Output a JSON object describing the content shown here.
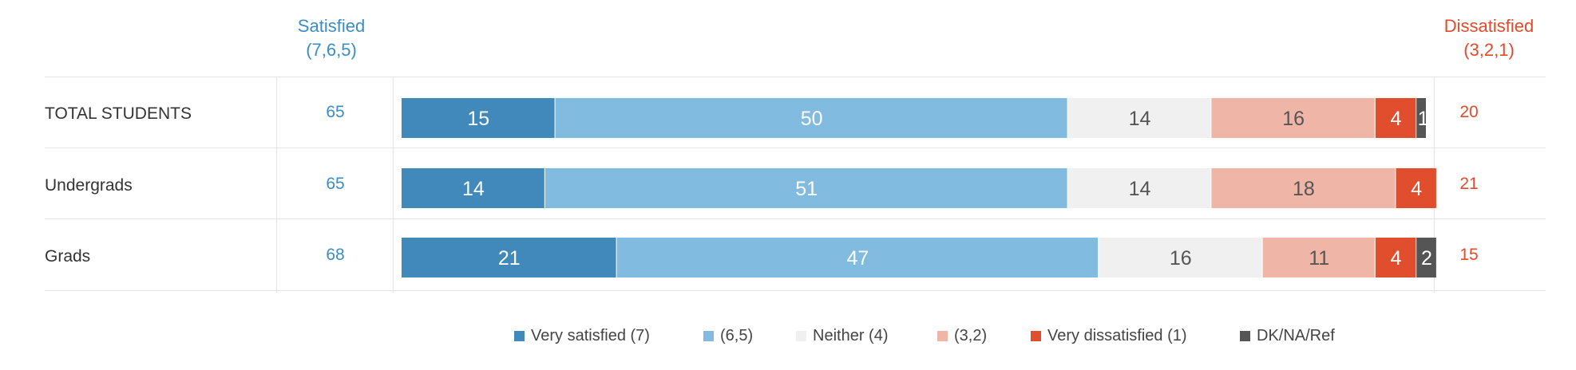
{
  "header": {
    "satisfied": "Satisfied",
    "satisfied_codes": "(7,6,5)",
    "dissatisfied": "Dissatisfied",
    "dissatisfied_codes": "(3,2,1)"
  },
  "colors": {
    "satisfied_text": "#3B8DC5",
    "dissatisfied_text": "#E24A2B",
    "very_satisfied": "#4189BA",
    "six_five": "#82BBE0",
    "neither": "#F0F0F0",
    "three_two": "#EFB5A6",
    "very_dissatisfied": "#E04E2E",
    "dk": "#555555"
  },
  "rows": [
    {
      "label": "TOTAL STUDENTS",
      "satisfied": "65",
      "dissatisfied": "20"
    },
    {
      "label": "Undergrads",
      "satisfied": "65",
      "dissatisfied": "21"
    },
    {
      "label": "Grads",
      "satisfied": "68",
      "dissatisfied": "15"
    }
  ],
  "legend": [
    {
      "label": "Very satisfied (7)",
      "color": "#4189BA"
    },
    {
      "label": "(6,5)",
      "color": "#82BBE0"
    },
    {
      "label": "Neither (4)",
      "color": "#F0F0F0"
    },
    {
      "label": "(3,2)",
      "color": "#EFB5A6"
    },
    {
      "label": "Very dissatisfied (1)",
      "color": "#E04E2E"
    },
    {
      "label": "DK/NA/Ref",
      "color": "#555555"
    }
  ],
  "chart_data": {
    "type": "bar",
    "orientation": "horizontal",
    "stacked": true,
    "categories": [
      "TOTAL STUDENTS",
      "Undergrads",
      "Grads"
    ],
    "series": [
      {
        "name": "Very satisfied (7)",
        "color": "#4189BA",
        "label_color": "#ffffff",
        "values": [
          15,
          14,
          21
        ]
      },
      {
        "name": "(6,5)",
        "color": "#82BBE0",
        "label_color": "#ffffff",
        "values": [
          50,
          51,
          47
        ]
      },
      {
        "name": "Neither (4)",
        "color": "#F0F0F0",
        "label_color": "#555555",
        "values": [
          14,
          14,
          16
        ]
      },
      {
        "name": "(3,2)",
        "color": "#EFB5A6",
        "label_color": "#555555",
        "values": [
          16,
          18,
          11
        ]
      },
      {
        "name": "Very dissatisfied (1)",
        "color": "#E04E2E",
        "label_color": "#ffffff",
        "values": [
          4,
          4,
          4
        ]
      },
      {
        "name": "DK/NA/Ref",
        "color": "#555555",
        "label_color": "#ffffff",
        "values": [
          1,
          0,
          2
        ]
      }
    ],
    "legend_position": "bottom",
    "grid": false
  }
}
